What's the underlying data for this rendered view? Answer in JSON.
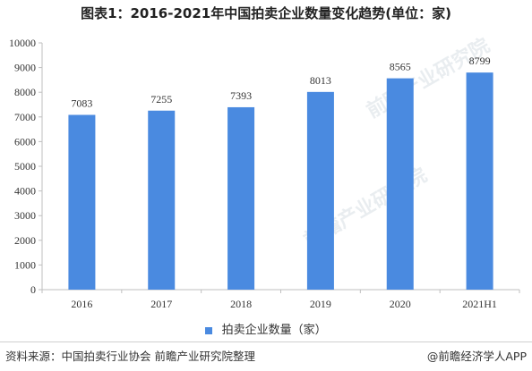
{
  "chart_data": {
    "type": "bar",
    "title": "图表1：2016-2021年中国拍卖企业数量变化趋势(单位：家)",
    "categories": [
      "2016",
      "2017",
      "2018",
      "2019",
      "2020",
      "2021H1"
    ],
    "series": [
      {
        "name": "拍卖企业数量（家）",
        "values": [
          7083,
          7255,
          7393,
          8013,
          8565,
          8799
        ]
      }
    ],
    "ylim": [
      0,
      10000
    ],
    "yticks": [
      "0",
      "1000",
      "2000",
      "3000",
      "4000",
      "5000",
      "6000",
      "7000",
      "8000",
      "9000",
      "10000"
    ],
    "grid": false,
    "legend": "bottom",
    "colors": {
      "bar": "#4a8ae0"
    }
  },
  "footer": {
    "source": "资料来源：中国拍卖行业协会 前瞻产业研究院整理",
    "credit": "@前瞻经济学人APP"
  },
  "watermark": {
    "text": "前瞻产业研究院"
  }
}
